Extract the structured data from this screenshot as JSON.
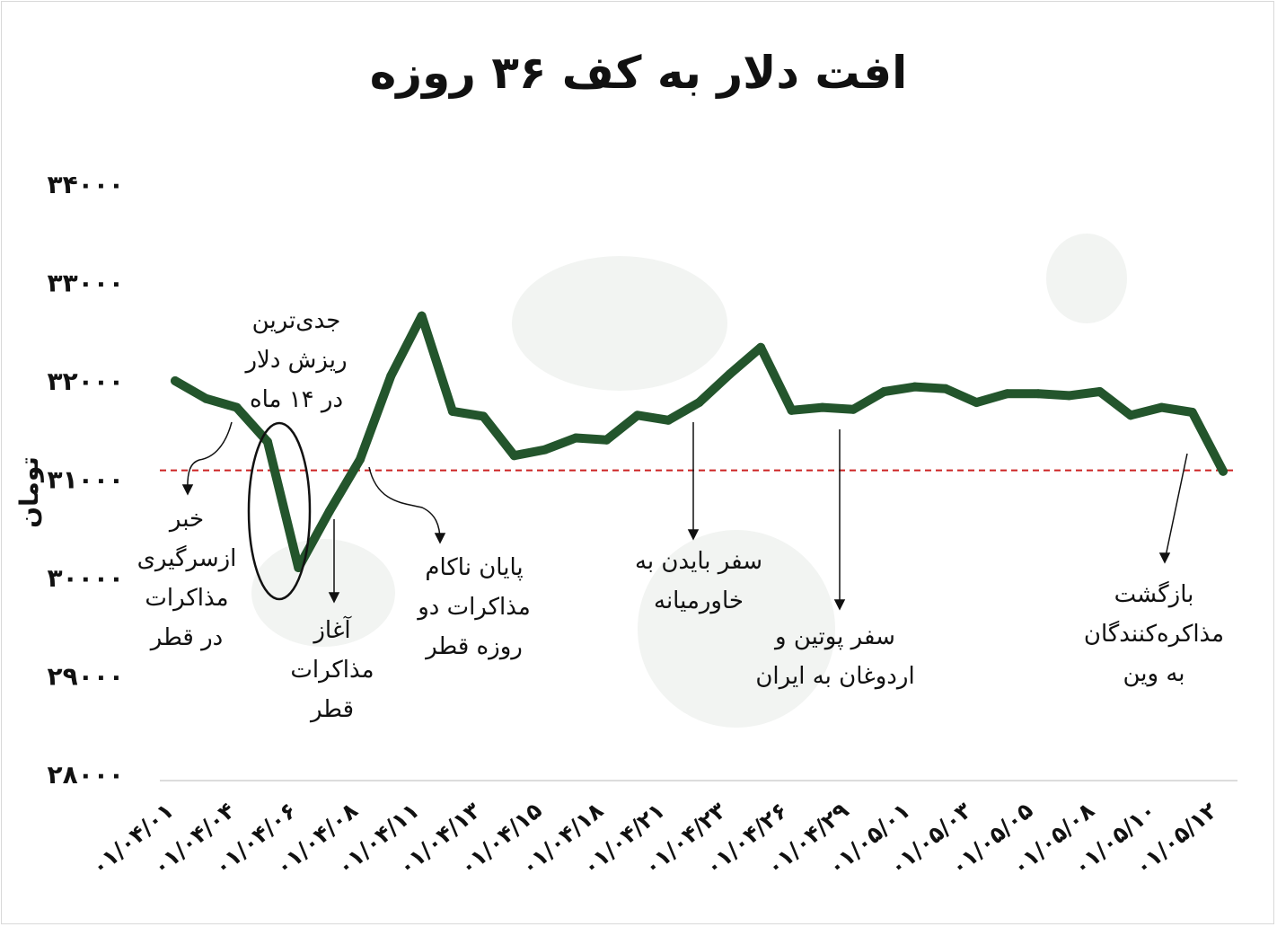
{
  "chart_data": {
    "type": "line",
    "title": "افت دلار به کف ۳۶ روزه",
    "ylabel": "تومان",
    "ylim": [
      28000,
      34000
    ],
    "yticks": [
      28000,
      29000,
      30000,
      31000,
      32000,
      33000,
      34000
    ],
    "ytick_labels": [
      "۲۸۰۰۰",
      "۲۹۰۰۰",
      "۳۰۰۰۰",
      "۳۱۰۰۰",
      "۳۲۰۰۰",
      "۳۳۰۰۰",
      "۳۴۰۰۰"
    ],
    "x_labels": [
      "۰۱/۰۴/۰۱",
      "۰۱/۰۴/۰۴",
      "۰۱/۰۴/۰۶",
      "۰۱/۰۴/۰۸",
      "۰۱/۰۴/۱۱",
      "۰۱/۰۴/۱۳",
      "۰۱/۰۴/۱۵",
      "۰۱/۰۴/۱۸",
      "۰۱/۰۴/۲۱",
      "۰۱/۰۴/۲۳",
      "۰۱/۰۴/۲۶",
      "۰۱/۰۴/۲۹",
      "۰۱/۰۵/۰۱",
      "۰۱/۰۵/۰۳",
      "۰۱/۰۵/۰۵",
      "۰۱/۰۵/۰۸",
      "۰۱/۰۵/۱۰",
      "۰۱/۰۵/۱۲"
    ],
    "values": [
      32000,
      31820,
      31730,
      31380,
      30100,
      30670,
      31200,
      32050,
      32660,
      31690,
      31640,
      31240,
      31300,
      31420,
      31400,
      31650,
      31600,
      31780,
      32070,
      32340,
      31700,
      31730,
      31710,
      31890,
      31940,
      31920,
      31780,
      31870,
      31870,
      31850,
      31890,
      31650,
      31730,
      31680,
      31080
    ],
    "reference_line": {
      "value": 31090,
      "color": "#cc2222",
      "style": "dashed"
    },
    "line_color": "#23552c",
    "grid": false,
    "annotations": [
      {
        "id": "a1",
        "lines": [
          "خبر",
          "ازسرگیری",
          "مذاکرات",
          "در قطر"
        ]
      },
      {
        "id": "a2",
        "lines": [
          "جدی‌ترین",
          "ریزش دلار",
          "در ۱۴ ماه"
        ]
      },
      {
        "id": "a3",
        "lines": [
          "آغاز",
          "مذاکرات",
          "قطر"
        ]
      },
      {
        "id": "a4",
        "lines": [
          "پایان ناکام",
          "مذاکرات دو",
          "روزه قطر"
        ]
      },
      {
        "id": "a5",
        "lines": [
          "سفر بایدن به",
          "خاورمیانه"
        ]
      },
      {
        "id": "a6",
        "lines": [
          "سفر پوتین و",
          "اردوغان به ایران"
        ]
      },
      {
        "id": "a7",
        "lines": [
          "بازگشت",
          "مذاکره‌کنندگان",
          "به وین"
        ]
      }
    ]
  }
}
